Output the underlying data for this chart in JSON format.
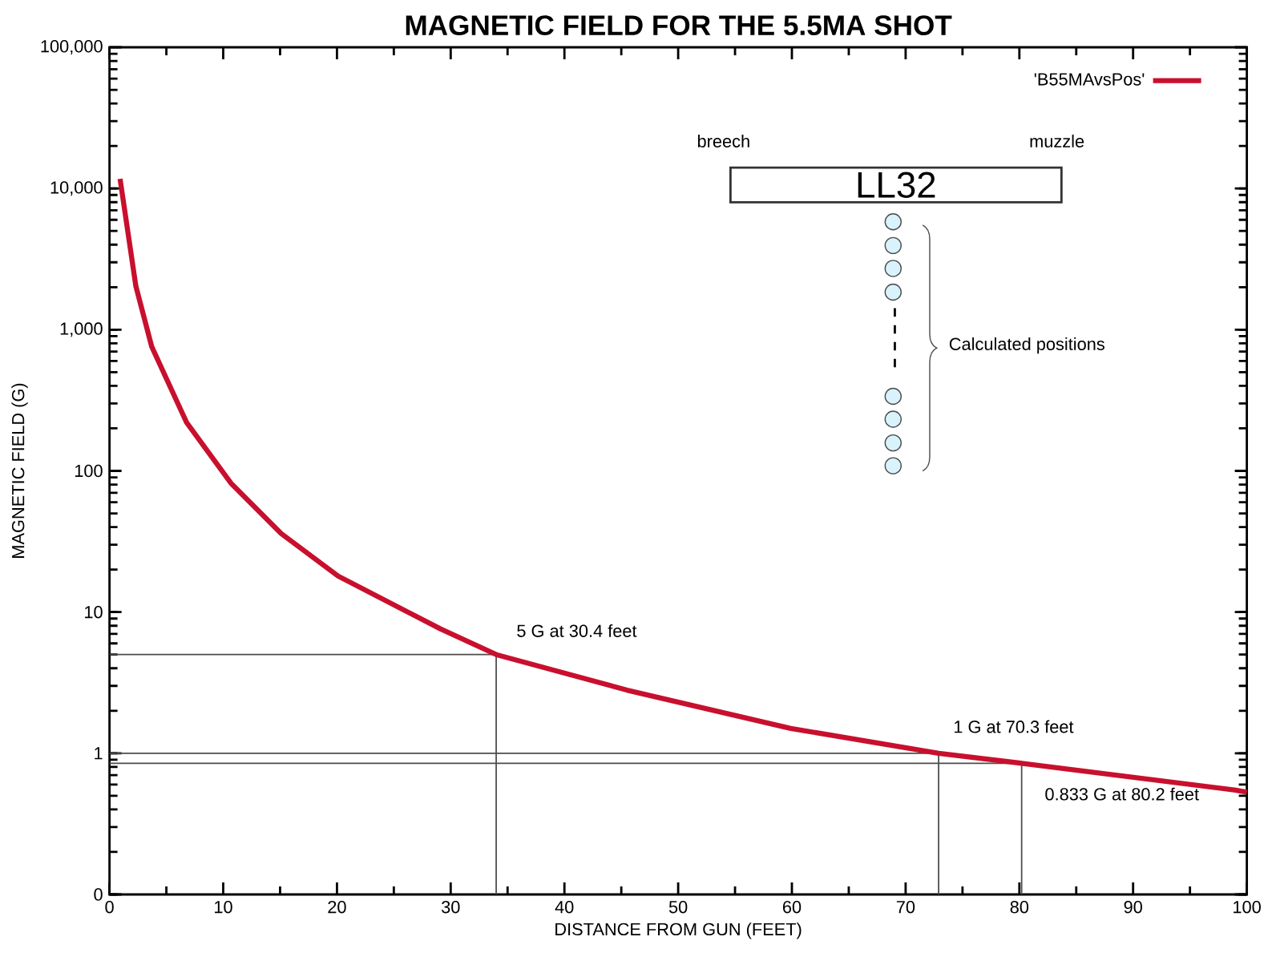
{
  "chart_data": {
    "type": "line",
    "title": "MAGNETIC FIELD FOR THE 5.5MA SHOT",
    "xlabel": "DISTANCE FROM GUN (FEET)",
    "ylabel": "MAGNETIC FIELD (G)",
    "series": [
      {
        "type": "line",
        "color": "#4c4c4c",
        "x": [
          0,
          34.0,
          34.0
        ],
        "values": [
          5,
          5,
          0.1
        ]
      },
      {
        "type": "line",
        "color": "#4c4c4c",
        "x": [
          0,
          72.9,
          72.9
        ],
        "values": [
          1,
          1,
          0.1
        ]
      },
      {
        "type": "line",
        "color": "#4c4c4c",
        "x": [
          0,
          80.2,
          80.2
        ],
        "values": [
          0.85,
          0.85,
          0.1
        ]
      },
      {
        "name": "'B55MAvsPos'",
        "color": "#c8102e",
        "x": [
          0.93,
          2.32,
          3.71,
          6.78,
          10.67,
          15.1,
          20.1,
          29.1,
          34.0,
          45.5,
          59.9,
          72.9,
          80.2,
          98.9,
          100
        ],
        "values": [
          11700,
          2030,
          760,
          220,
          82,
          36,
          18,
          7.6,
          5.0,
          2.8,
          1.5,
          1.0,
          0.85,
          0.55,
          0.53
        ]
      }
    ],
    "xlim": [
      0,
      100
    ],
    "xticks": [
      0,
      10,
      20,
      30,
      40,
      50,
      60,
      70,
      80,
      90,
      100
    ],
    "ylim": [
      0.1,
      100000
    ],
    "yticks": [
      {
        "value": 0.1,
        "label": "0"
      },
      1,
      10,
      100,
      {
        "value": 1000,
        "label": "1,000"
      },
      {
        "value": 10000,
        "label": "10,000"
      },
      {
        "value": 100000,
        "label": "100,000"
      }
    ],
    "log": "y",
    "legend": "top right",
    "marker": "none",
    "line_style": "solid",
    "grid": false,
    "annotations": [
      {
        "text": "5 G at 30.4 feet",
        "x": 34.0,
        "y": 5
      },
      {
        "text": "1 G at 70.3 feet",
        "x": 72.9,
        "y": 1
      },
      {
        "text": "0.833 G at 80.2 feet",
        "x": 80.2,
        "y": 0.833
      },
      "breech",
      "muzzle",
      "LL32",
      "Calculated positions"
    ]
  }
}
